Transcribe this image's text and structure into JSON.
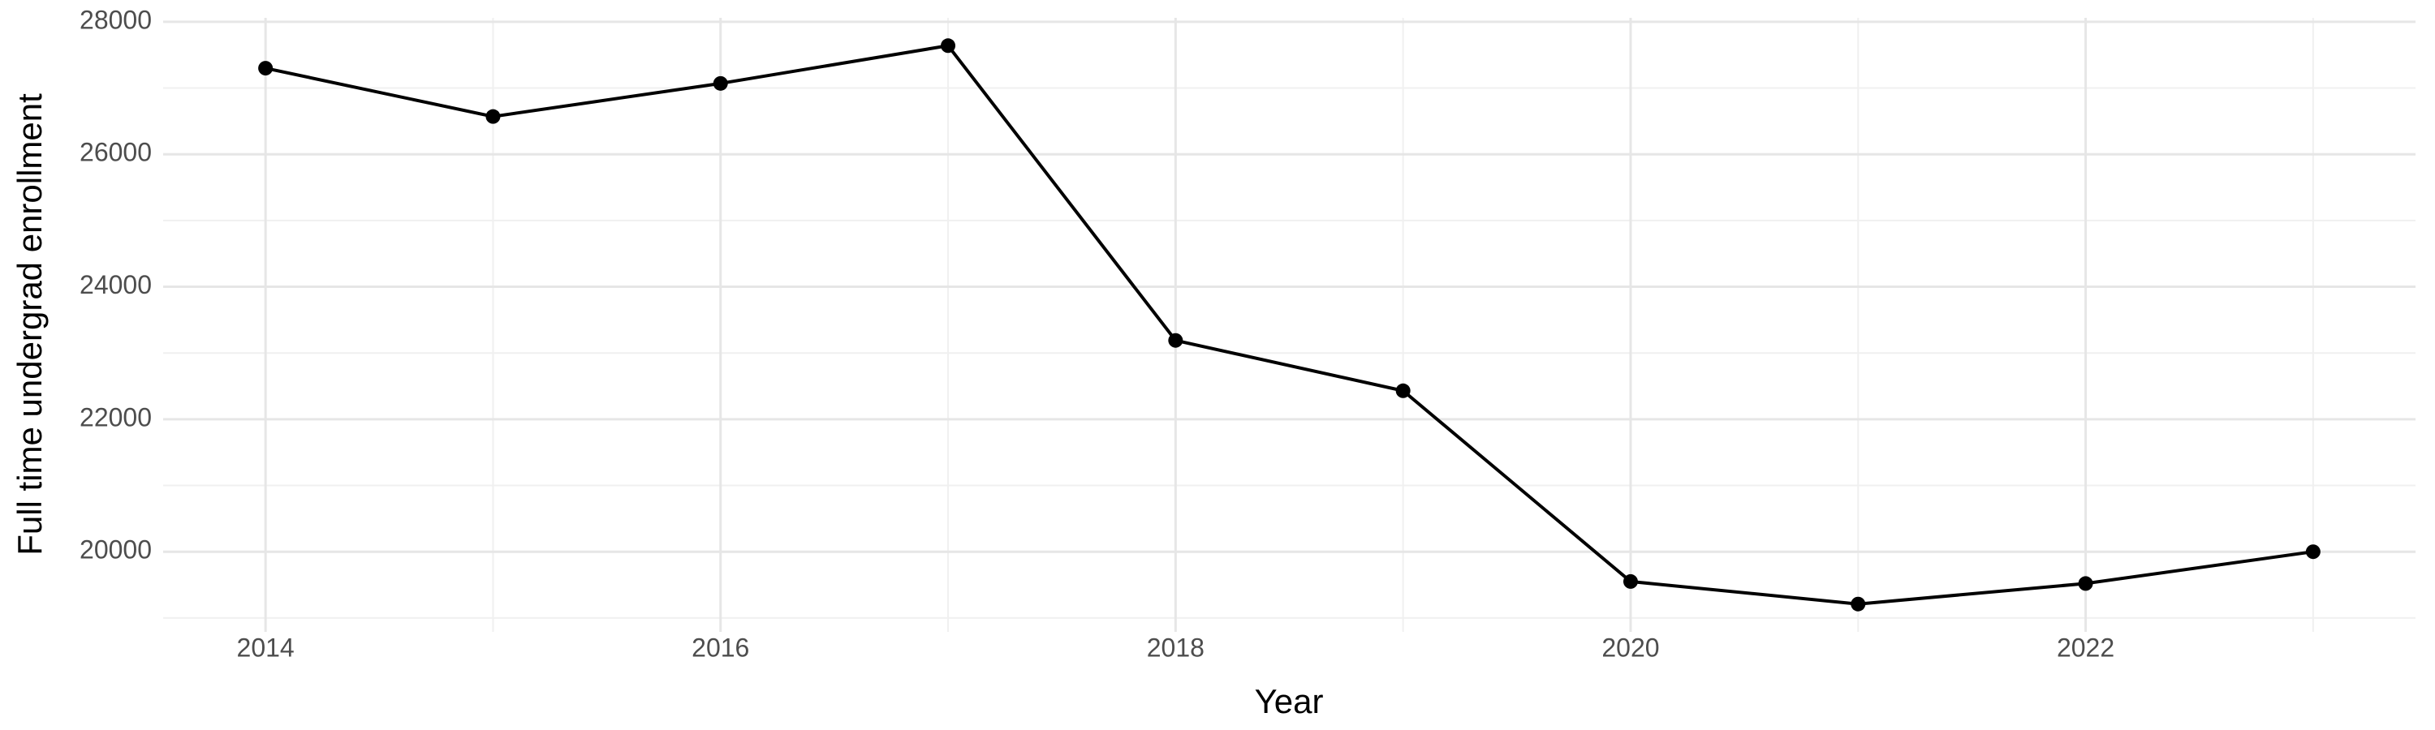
{
  "chart_data": {
    "type": "line",
    "x_label": "Year",
    "y_label": "Full time undergrad enrollment",
    "x": [
      2014,
      2015,
      2016,
      2017,
      2018,
      2019,
      2020,
      2021,
      2022,
      2023
    ],
    "series": [
      {
        "name": "Full time undergrad enrollment",
        "color": "#000000",
        "values": [
          27300,
          26570,
          27070,
          27640,
          23190,
          22430,
          19550,
          19210,
          19520,
          20000
        ]
      }
    ],
    "xlim": [
      2013.55,
      2023.45
    ],
    "ylim": [
      18790,
      28060
    ],
    "xticks": [
      2014,
      2016,
      2018,
      2020,
      2022
    ],
    "yticks": [
      20000,
      22000,
      24000,
      26000,
      28000
    ],
    "x_minor_ticks": [
      2015,
      2017,
      2019,
      2021,
      2023
    ],
    "y_minor_ticks": [
      19000,
      21000,
      23000,
      25000,
      27000
    ],
    "grid": true,
    "markers": true
  }
}
